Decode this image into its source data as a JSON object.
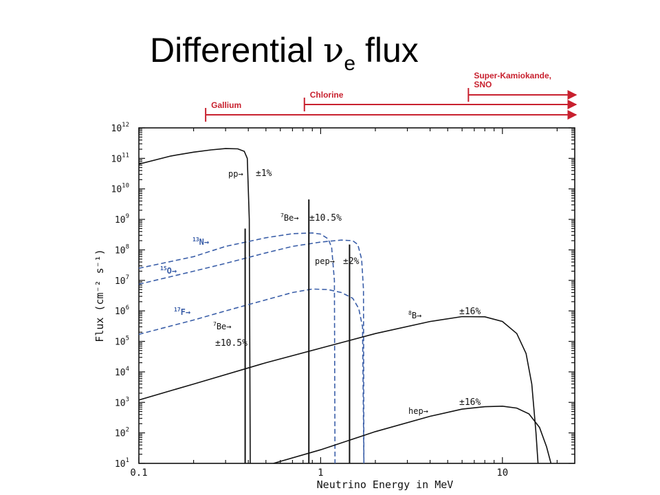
{
  "title": {
    "main": "Differential",
    "nu": "ν",
    "sub": "e",
    "rest": "flux"
  },
  "detectors": [
    {
      "name": "Gallium",
      "start_mev": 0.233,
      "color": "#c8202e"
    },
    {
      "name": "Chlorine",
      "start_mev": 0.814,
      "color": "#c8202e"
    },
    {
      "name": "Super-Kamiokande,",
      "name2": "SNO",
      "start_mev": 6.5,
      "color": "#c8202e"
    }
  ],
  "chart_data": {
    "type": "line",
    "xlabel": "Neutrino Energy in MeV",
    "ylabel": "Flux (cm⁻² s⁻¹)",
    "xscale": "log",
    "yscale": "log",
    "xlim": [
      0.1,
      25
    ],
    "ylim": [
      10,
      1000000000000.0
    ],
    "x_ticks": [
      {
        "value": 0.1,
        "label": "0.1"
      },
      {
        "value": 1,
        "label": "1"
      },
      {
        "value": 10,
        "label": "10"
      }
    ],
    "y_ticks": [
      {
        "exp": 1,
        "base": "10",
        "label": "1"
      },
      {
        "exp": 2,
        "base": "10",
        "label": "2"
      },
      {
        "exp": 3,
        "base": "10",
        "label": "3"
      },
      {
        "exp": 4,
        "base": "10",
        "label": "4"
      },
      {
        "exp": 5,
        "base": "10",
        "label": "5"
      },
      {
        "exp": 6,
        "base": "10",
        "label": "6"
      },
      {
        "exp": 7,
        "base": "10",
        "label": "7"
      },
      {
        "exp": 8,
        "base": "10",
        "label": "8"
      },
      {
        "exp": 9,
        "base": "10",
        "label": "9"
      },
      {
        "exp": 10,
        "base": "10",
        "label": "10"
      },
      {
        "exp": 11,
        "base": "10",
        "label": "11"
      },
      {
        "exp": 12,
        "base": "10",
        "label": "12"
      }
    ],
    "series": [
      {
        "id": "pp",
        "style": "solid",
        "color": "#111111",
        "points": [
          [
            0.1,
            65000000000.0
          ],
          [
            0.15,
            120000000000.0
          ],
          [
            0.2,
            160000000000.0
          ],
          [
            0.25,
            190000000000.0
          ],
          [
            0.3,
            210000000000.0
          ],
          [
            0.35,
            205000000000.0
          ],
          [
            0.38,
            170000000000.0
          ],
          [
            0.395,
            100000000000.0
          ],
          [
            0.405,
            1000000000.0
          ],
          [
            0.41,
            10
          ]
        ]
      },
      {
        "id": "n13",
        "style": "dashed",
        "color": "#3a5ea8",
        "points": [
          [
            0.1,
            25000000.0
          ],
          [
            0.2,
            60000000.0
          ],
          [
            0.3,
            130000000.0
          ],
          [
            0.5,
            250000000.0
          ],
          [
            0.7,
            340000000.0
          ],
          [
            0.9,
            360000000.0
          ],
          [
            1.0,
            330000000.0
          ],
          [
            1.1,
            230000000.0
          ],
          [
            1.15,
            120000000.0
          ],
          [
            1.19,
            10000000.0
          ],
          [
            1.2,
            10
          ]
        ]
      },
      {
        "id": "o15",
        "style": "dashed",
        "color": "#3a5ea8",
        "points": [
          [
            0.1,
            7500000.0
          ],
          [
            0.2,
            20000000.0
          ],
          [
            0.3,
            36000000.0
          ],
          [
            0.5,
            80000000.0
          ],
          [
            0.7,
            130000000.0
          ],
          [
            1.0,
            180000000.0
          ],
          [
            1.3,
            210000000.0
          ],
          [
            1.5,
            200000000.0
          ],
          [
            1.6,
            150000000.0
          ],
          [
            1.68,
            50000000.0
          ],
          [
            1.72,
            5000000.0
          ],
          [
            1.73,
            10
          ]
        ]
      },
      {
        "id": "f17",
        "style": "dashed",
        "color": "#3a5ea8",
        "points": [
          [
            0.1,
            170000.0
          ],
          [
            0.2,
            500000.0
          ],
          [
            0.3,
            1000000.0
          ],
          [
            0.5,
            2300000.0
          ],
          [
            0.7,
            4000000.0
          ],
          [
            0.9,
            5200000.0
          ],
          [
            1.1,
            5000000.0
          ],
          [
            1.3,
            4000000.0
          ],
          [
            1.5,
            2600000.0
          ],
          [
            1.62,
            1200000.0
          ],
          [
            1.7,
            300000.0
          ],
          [
            1.73,
            10
          ]
        ]
      },
      {
        "id": "b8",
        "style": "solid",
        "color": "#111111",
        "points": [
          [
            0.1,
            1200.0
          ],
          [
            0.2,
            4000.0
          ],
          [
            0.5,
            20000.0
          ],
          [
            1.0,
            60000.0
          ],
          [
            2.0,
            180000.0
          ],
          [
            4.0,
            450000.0
          ],
          [
            6.0,
            650000.0
          ],
          [
            8.0,
            640000.0
          ],
          [
            10.0,
            450000.0
          ],
          [
            12.0,
            180000.0
          ],
          [
            13.5,
            40000.0
          ],
          [
            14.5,
            4000.0
          ],
          [
            15.3,
            100.0
          ],
          [
            15.7,
            10
          ]
        ]
      },
      {
        "id": "hep",
        "style": "solid",
        "color": "#111111",
        "points": [
          [
            0.55,
            10
          ],
          [
            1.0,
            28
          ],
          [
            2.0,
            110
          ],
          [
            4.0,
            350
          ],
          [
            6.0,
            600
          ],
          [
            8.0,
            720
          ],
          [
            10.0,
            750
          ],
          [
            12.0,
            650
          ],
          [
            14.0,
            420
          ],
          [
            16.0,
            150
          ],
          [
            17.5,
            35
          ],
          [
            18.5,
            10
          ]
        ]
      }
    ],
    "lines": [
      {
        "id": "be7-low",
        "energy_mev": 0.3843,
        "flux": 500000000.0,
        "color": "#111111"
      },
      {
        "id": "be7-high",
        "energy_mev": 0.8613,
        "flux": 4500000000.0,
        "color": "#111111"
      },
      {
        "id": "pep",
        "energy_mev": 1.442,
        "flux": 150000000.0,
        "color": "#111111"
      }
    ],
    "annotations": [
      {
        "id": "pp",
        "text": "pp→",
        "uncert": "±1%",
        "color": "#111111"
      },
      {
        "id": "be7-high",
        "text_sup": "7",
        "text": "Be→",
        "uncert": "±10.5%",
        "color": "#111111"
      },
      {
        "id": "n13",
        "text_sup": "13",
        "text": "N→",
        "color": "#3a5ea8"
      },
      {
        "id": "o15",
        "text_sup": "15",
        "text": "O→",
        "color": "#3a5ea8"
      },
      {
        "id": "pep",
        "text": "pep→",
        "uncert": "±2%",
        "color": "#111111"
      },
      {
        "id": "f17",
        "text_sup": "17",
        "text": "F→",
        "color": "#3a5ea8"
      },
      {
        "id": "be7-low",
        "text_sup": "7",
        "text": "Be→",
        "uncert": "±10.5%",
        "color": "#111111"
      },
      {
        "id": "b8",
        "text_sup": "8",
        "text": "B→",
        "uncert": "±16%",
        "color": "#111111"
      },
      {
        "id": "hep",
        "text": "hep→",
        "uncert": "±16%",
        "color": "#111111"
      }
    ]
  }
}
